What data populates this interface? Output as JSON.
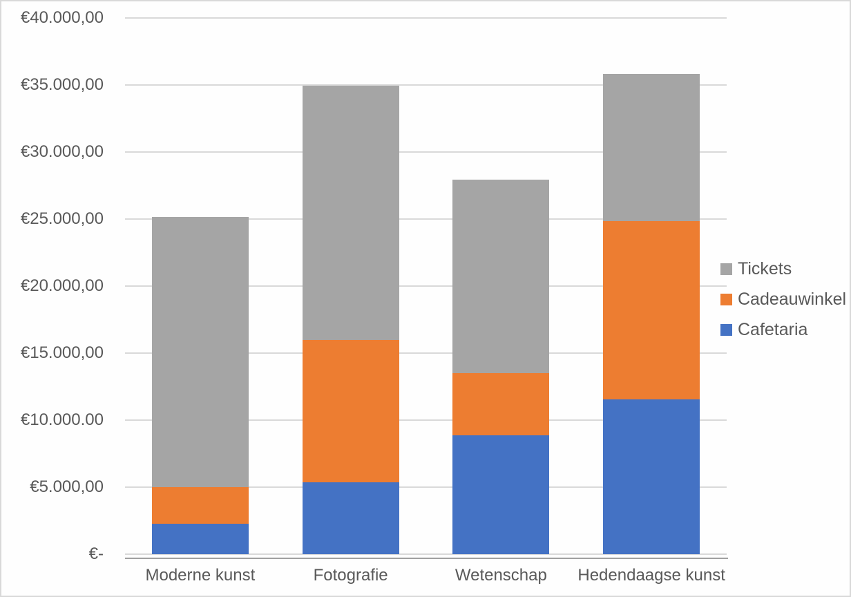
{
  "chart": {
    "background_color": "#FEFEFE",
    "frame_border_color": "#D9D9D9",
    "text_color": "#595959",
    "gridline_color": "#D9D9D9",
    "axis_line_color": "#A0A0A0"
  },
  "chart_data": {
    "type": "bar",
    "stacked": true,
    "title": "",
    "categories": [
      "Moderne kunst",
      "Fotografie",
      "Wetenschap",
      "Hedendaagse kunst"
    ],
    "series": [
      {
        "name": "Cafetaria",
        "color": "#4472C4",
        "values": [
          2250,
          5350,
          8850,
          11550
        ]
      },
      {
        "name": "Cadeauwinkel",
        "color": "#ED7D31",
        "values": [
          2750,
          10650,
          4650,
          13300
        ]
      },
      {
        "name": "Tickets",
        "color": "#A5A5A5",
        "values": [
          20150,
          18950,
          14450,
          10950
        ]
      }
    ],
    "y_axis": {
      "min": 0,
      "max": 40000,
      "step": 5000,
      "tick_labels": [
        "€-",
        "€5.000,00",
        "€10.000.00",
        "€15.000,00",
        "€20.000,00",
        "€25.000,00",
        "€30.000,00",
        "€35.000,00",
        "€40.000,00"
      ]
    },
    "x_axis": {
      "labels": [
        "Moderne kunst",
        "Fotografie",
        "Wetenschap",
        "Hedendaagse kunst"
      ]
    },
    "legend": {
      "position": "right",
      "entries": [
        {
          "label": "Tickets",
          "color": "#A5A5A5"
        },
        {
          "label": "Cadeauwinkel",
          "color": "#ED7D31"
        },
        {
          "label": "Cafetaria",
          "color": "#4472C4"
        }
      ]
    },
    "grid": true
  }
}
